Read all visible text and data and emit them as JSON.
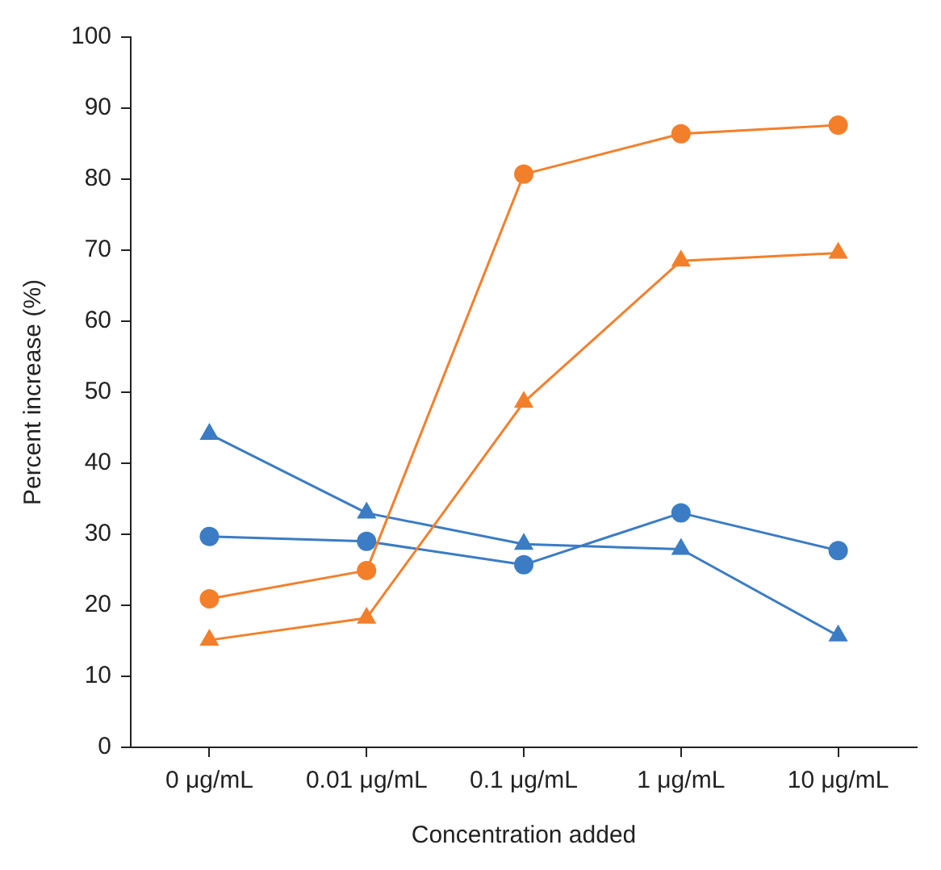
{
  "chart_data": {
    "type": "line",
    "xlabel": "Concentration added",
    "ylabel": "Percent increase (%)",
    "categories": [
      "0 μg/mL",
      "0.01 μg/mL",
      "0.1 μg/mL",
      "1 μg/mL",
      "10 μg/mL"
    ],
    "series": [
      {
        "color": "#f47f2b",
        "marker": "circle",
        "values": [
          20.9,
          24.9,
          80.7,
          86.4,
          87.6
        ]
      },
      {
        "color": "#f47f2b",
        "marker": "triangle",
        "values": [
          15.1,
          18.2,
          48.6,
          68.5,
          69.6
        ]
      },
      {
        "color": "#3b7cc4",
        "marker": "circle",
        "values": [
          29.7,
          29.0,
          25.7,
          33.0,
          27.7
        ]
      },
      {
        "color": "#3b7cc4",
        "marker": "triangle",
        "values": [
          44.1,
          33.0,
          28.6,
          27.9,
          15.7
        ]
      }
    ],
    "ylim": [
      0,
      100
    ],
    "yticks": [
      0,
      10,
      20,
      30,
      40,
      50,
      60,
      70,
      80,
      90,
      100
    ],
    "grid": false,
    "legend": false,
    "line_style": "solid"
  }
}
